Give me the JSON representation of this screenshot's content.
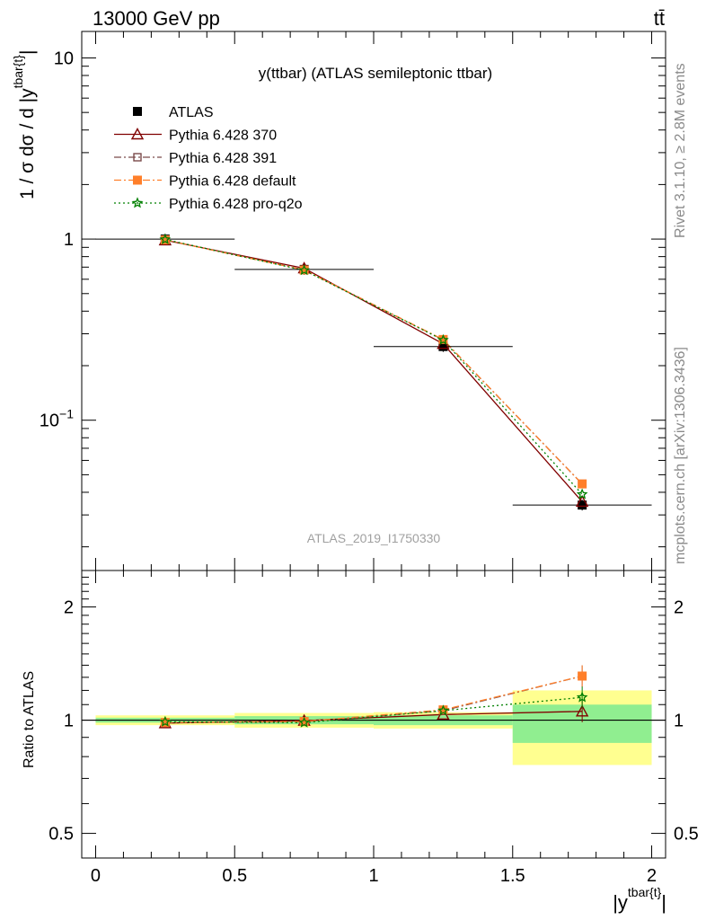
{
  "header": {
    "energy_label": "13000 GeV pp",
    "process_label": "tt̄"
  },
  "side": {
    "rivet_label": "Rivet 3.1.10, ≥ 2.8M events",
    "mcplots_label": "mcplots.cern.ch [arXiv:1306.3436]"
  },
  "chart_data": [
    {
      "type": "line",
      "title": "y(ttbar) (ATLAS semileptonic ttbar)",
      "ylabel": "1 / σ dσ / d |y^{tbar{t}}|",
      "yscale": "log",
      "ylim": [
        0.0148,
        14
      ],
      "xlim": [
        -0.05,
        2.05
      ],
      "ytick_labels": [
        "10",
        "1",
        "10^{−1}"
      ],
      "watermark": "ATLAS_2019_I1750330",
      "legend_position": "top-left",
      "x": [
        0.25,
        0.75,
        1.25,
        1.75
      ],
      "series": [
        {
          "name": "ATLAS",
          "color": "#000000",
          "marker": "filled-square",
          "values": [
            1.0,
            0.68,
            0.255,
            0.034
          ]
        },
        {
          "name": "Pythia 6.428 370",
          "color": "#800000",
          "marker": "open-triangle",
          "dash": "solid",
          "values": [
            0.985,
            0.69,
            0.264,
            0.0355
          ]
        },
        {
          "name": "Pythia 6.428 391",
          "color": "#7a4a4a",
          "marker": "open-square",
          "dash": "dashdot",
          "values": [
            0.99,
            0.675,
            0.278,
            0.0445
          ]
        },
        {
          "name": "Pythia 6.428 default",
          "color": "#ff7f2a",
          "marker": "filled-square",
          "dash": "dashdot",
          "values": [
            0.99,
            0.675,
            0.279,
            0.0445
          ]
        },
        {
          "name": "Pythia 6.428 pro-q2o",
          "color": "#008000",
          "marker": "star",
          "dash": "dotted",
          "values": [
            0.995,
            0.672,
            0.277,
            0.039
          ]
        }
      ]
    },
    {
      "type": "line",
      "ylabel": "Ratio to ATLAS",
      "xlabel": "|y^{tbar{t}}|",
      "yscale": "log",
      "ylim": [
        0.43,
        2.5
      ],
      "ytick_labels": [
        "2",
        "1",
        "0.5"
      ],
      "xtick_labels": [
        "0",
        "0.5",
        "1",
        "1.5",
        "2"
      ],
      "bands": [
        {
          "x0": 0.0,
          "x1": 0.5,
          "inner": [
            0.985,
            1.015
          ],
          "outer": [
            0.97,
            1.03
          ]
        },
        {
          "x0": 0.5,
          "x1": 1.0,
          "inner": [
            0.975,
            1.025
          ],
          "outer": [
            0.955,
            1.045
          ]
        },
        {
          "x0": 1.0,
          "x1": 1.5,
          "inner": [
            0.97,
            1.03
          ],
          "outer": [
            0.95,
            1.05
          ]
        },
        {
          "x0": 1.5,
          "x1": 2.0,
          "inner": [
            0.87,
            1.1
          ],
          "outer": [
            0.76,
            1.2
          ]
        }
      ],
      "x": [
        0.25,
        0.75,
        1.25,
        1.75
      ],
      "series": [
        {
          "name": "Pythia 6.428 370",
          "color": "#800000",
          "marker": "open-triangle",
          "dash": "solid",
          "values": [
            0.982,
            0.997,
            1.035,
            1.055
          ]
        },
        {
          "name": "Pythia 6.428 391",
          "color": "#7a4a4a",
          "marker": "open-square",
          "dash": "dashdot",
          "values": [
            0.985,
            0.99,
            1.06,
            1.31
          ]
        },
        {
          "name": "Pythia 6.428 default",
          "color": "#ff7f2a",
          "marker": "filled-square",
          "dash": "dashdot",
          "values": [
            0.986,
            0.992,
            1.065,
            1.31
          ]
        },
        {
          "name": "Pythia 6.428 pro-q2o",
          "color": "#008000",
          "marker": "star",
          "dash": "dotted",
          "values": [
            0.99,
            0.985,
            1.06,
            1.15
          ]
        }
      ]
    }
  ]
}
